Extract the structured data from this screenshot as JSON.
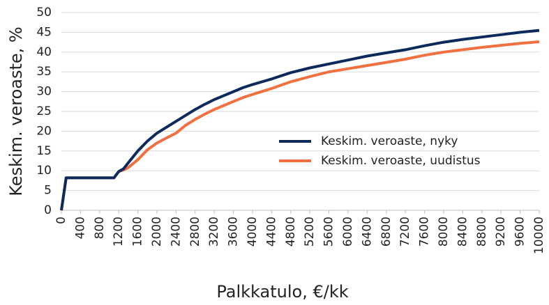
{
  "chart_data": {
    "type": "line",
    "x_label": "Palkkatulo, €/kk",
    "y_label": "Keskim. veroaste, %",
    "x": [
      0,
      100,
      1100,
      1200,
      1300,
      1400,
      1600,
      1800,
      2000,
      2200,
      2400,
      2600,
      2800,
      3000,
      3200,
      3400,
      3600,
      3800,
      4000,
      4400,
      4800,
      5200,
      5600,
      6000,
      6400,
      6800,
      7200,
      7600,
      8000,
      8400,
      8800,
      9200,
      9600,
      10000
    ],
    "series": [
      {
        "name": "Keskim. veroaste, nyky",
        "color": "#0d2a5c",
        "values": [
          0,
          8.2,
          8.2,
          9.8,
          10.5,
          12,
          15,
          17.5,
          19.5,
          21,
          22.5,
          24,
          25.5,
          26.8,
          28,
          29,
          30,
          31,
          31.8,
          33.2,
          34.8,
          36,
          37,
          38,
          39,
          39.8,
          40.6,
          41.6,
          42.5,
          43.2,
          43.8,
          44.4,
          45,
          45.5
        ]
      },
      {
        "name": "Keskim. veroaste, uudistus",
        "color": "#f07040",
        "values": [
          0,
          8.2,
          8.2,
          9.8,
          10.2,
          10.8,
          12.8,
          15.3,
          17,
          18.3,
          19.5,
          21.5,
          23,
          24.3,
          25.5,
          26.5,
          27.5,
          28.5,
          29.3,
          30.8,
          32.5,
          33.8,
          35,
          35.8,
          36.6,
          37.4,
          38.2,
          39.2,
          40,
          40.6,
          41.2,
          41.7,
          42.2,
          42.6
        ]
      }
    ],
    "xlim": [
      0,
      10000
    ],
    "xticks": [
      0,
      400,
      800,
      1200,
      1600,
      2000,
      2400,
      2800,
      3200,
      3600,
      4000,
      4400,
      4800,
      5200,
      5600,
      6000,
      6400,
      6800,
      7200,
      7600,
      8000,
      8400,
      8800,
      9200,
      9600,
      10000
    ],
    "ylim": [
      0,
      50
    ],
    "yticks": [
      0,
      5,
      10,
      15,
      20,
      25,
      30,
      35,
      40,
      45,
      50
    ],
    "grid": true,
    "legend": "right"
  }
}
